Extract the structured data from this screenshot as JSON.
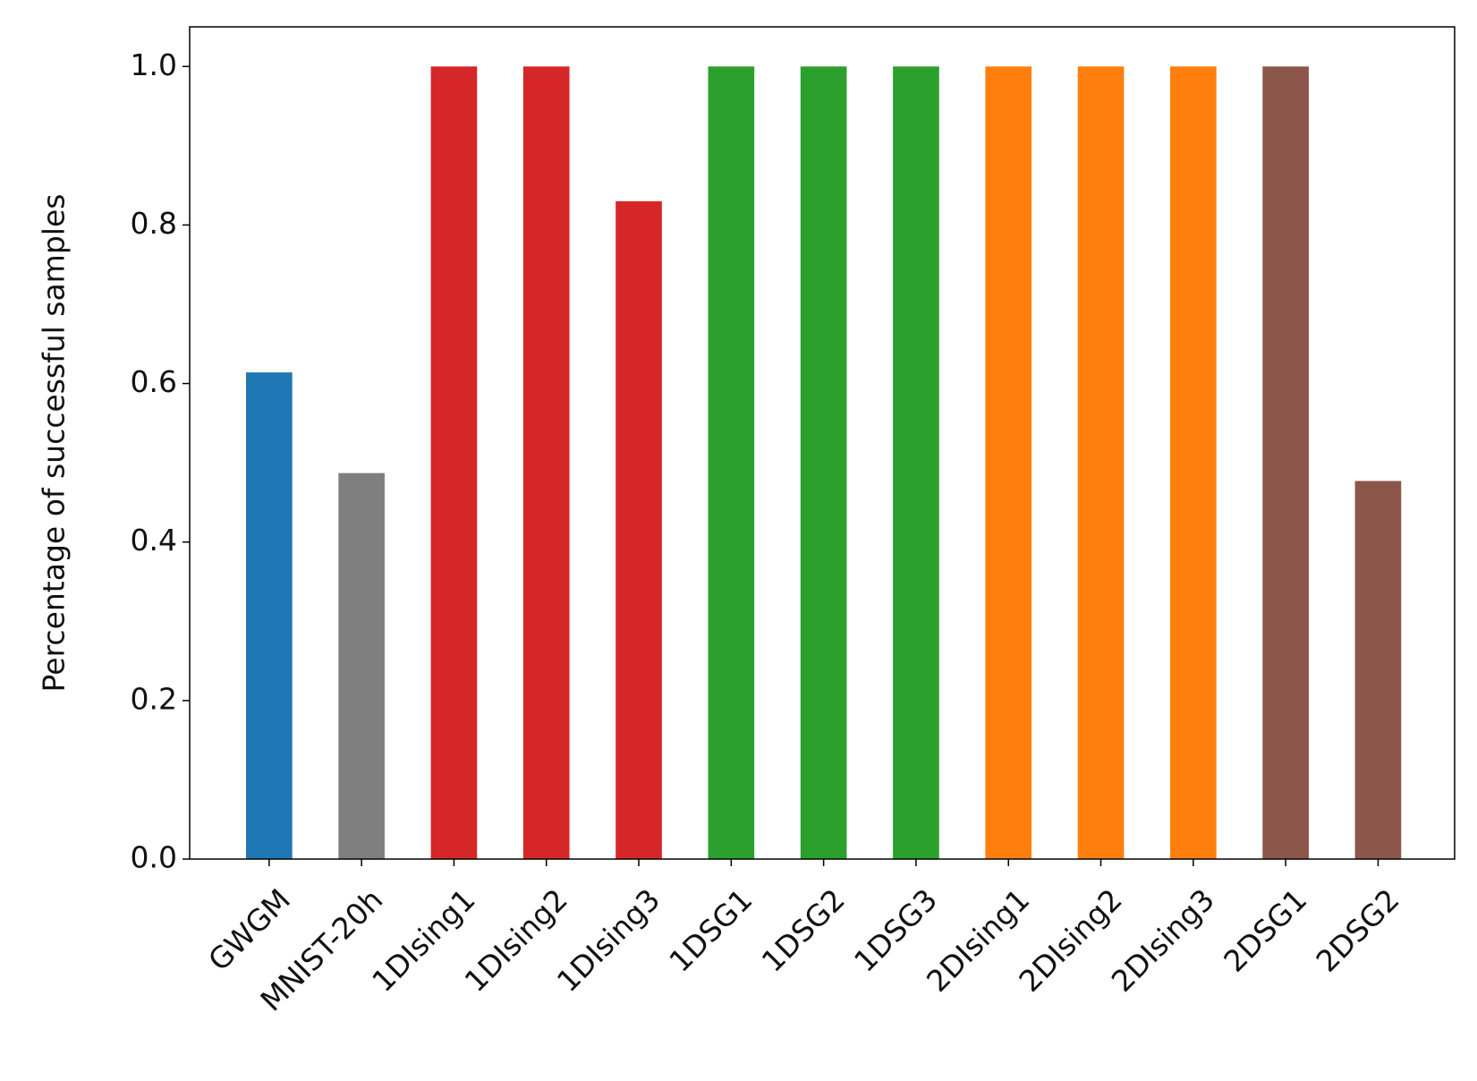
{
  "chart_data": {
    "type": "bar",
    "ylabel": "Percentage of successful samples",
    "categories": [
      "GWGM",
      "MNIST-20h",
      "1DIsing1",
      "1DIsing2",
      "1DIsing3",
      "1DSG1",
      "1DSG2",
      "1DSG3",
      "2DIsing1",
      "2DIsing2",
      "2DIsing3",
      "2DSG1",
      "2DSG2"
    ],
    "values": [
      0.614,
      0.487,
      1.0,
      1.0,
      0.83,
      1.0,
      1.0,
      1.0,
      1.0,
      1.0,
      1.0,
      1.0,
      0.477
    ],
    "colors": [
      "#1f77b4",
      "#7f7f7f",
      "#d62728",
      "#d62728",
      "#d62728",
      "#2ca02c",
      "#2ca02c",
      "#2ca02c",
      "#ff7f0e",
      "#ff7f0e",
      "#ff7f0e",
      "#8c564b",
      "#8c564b"
    ],
    "ylim": [
      0,
      1.05
    ],
    "yticks": [
      {
        "value": 0,
        "label": "0.0"
      },
      {
        "value": 0.2,
        "label": "0.2"
      },
      {
        "value": 0.4,
        "label": "0.4"
      },
      {
        "value": 0.6,
        "label": "0.6"
      },
      {
        "value": 0.8,
        "label": "0.8"
      },
      {
        "value": 1,
        "label": "1.0"
      }
    ]
  }
}
